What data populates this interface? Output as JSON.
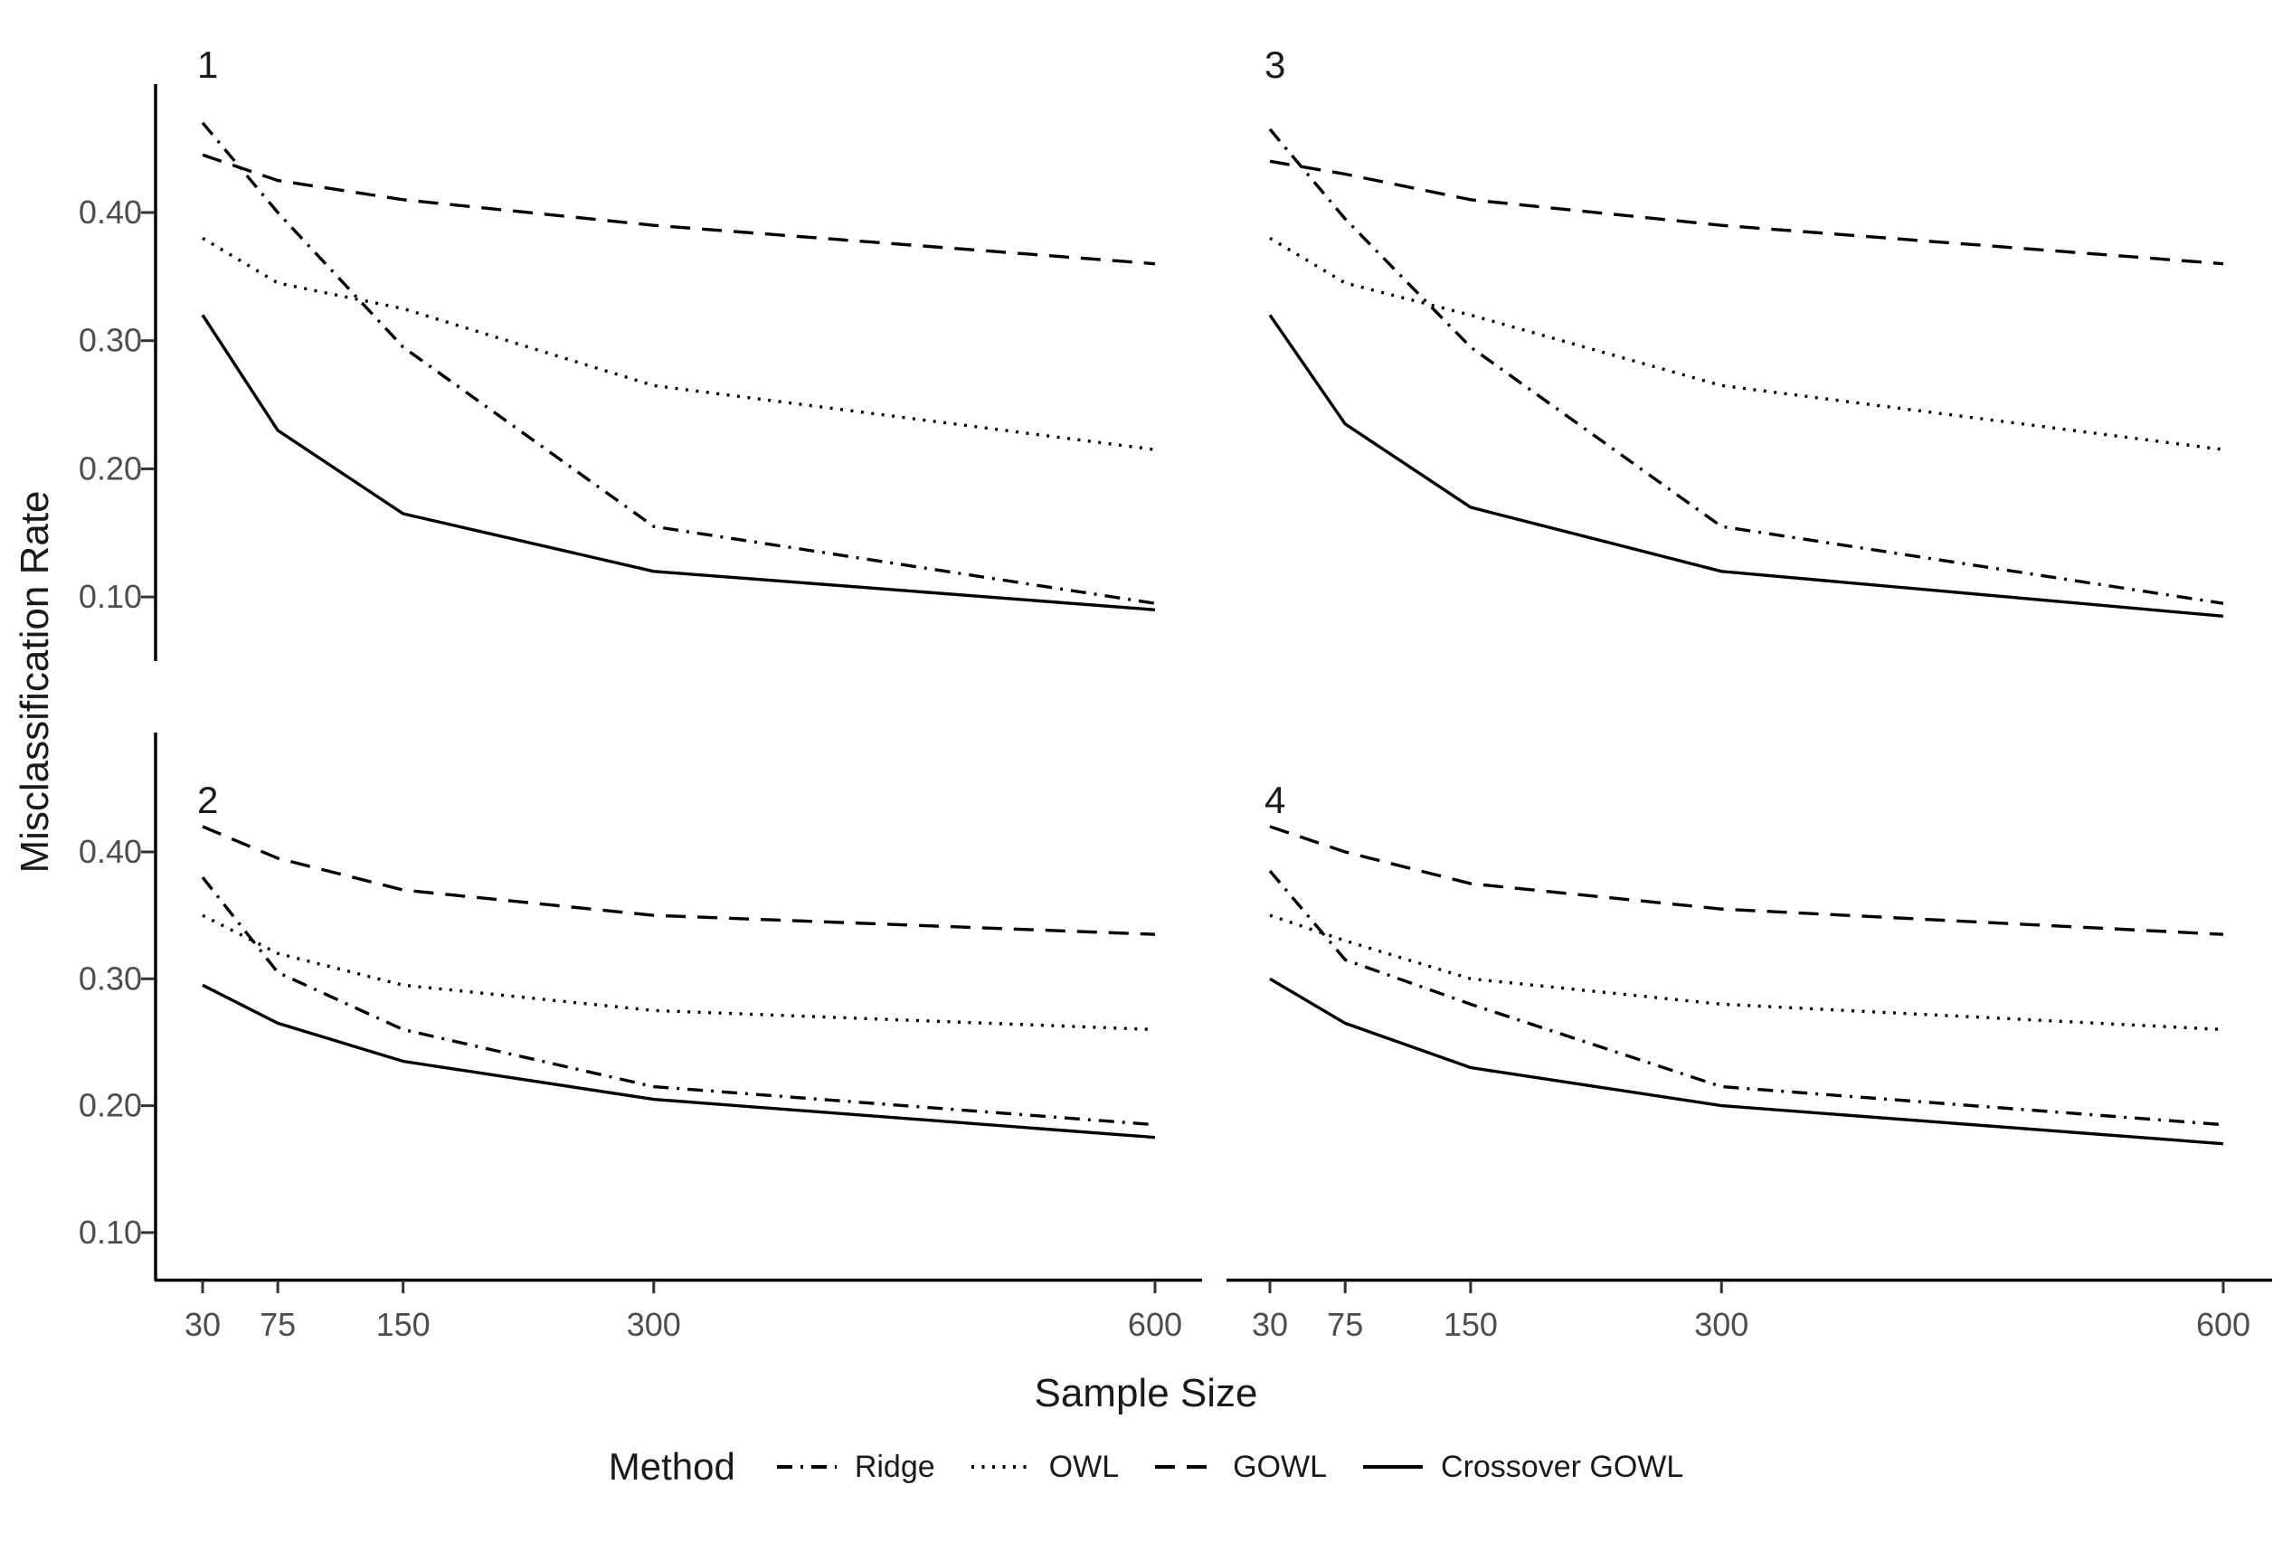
{
  "figure": {
    "y_axis_title": "Misclassification Rate",
    "x_axis_title": "Sample Size",
    "line_color": "#000000",
    "axis_color": "#000000",
    "tick_label_color": "#4d4d4d",
    "facet_label_color": "#1a1a1a",
    "y_tick_labels": [
      "0.40",
      "0.30",
      "0.20",
      "0.10"
    ],
    "y_tick_values": [
      0.4,
      0.3,
      0.2,
      0.1
    ],
    "x_tick_labels": [
      "30",
      "75",
      "150",
      "300",
      "600"
    ],
    "x_tick_values": [
      30,
      75,
      150,
      300,
      600
    ]
  },
  "legend": {
    "title": "Method",
    "items": [
      {
        "label": "Ridge",
        "linetype": "dashdot"
      },
      {
        "label": "OWL",
        "linetype": "dotted"
      },
      {
        "label": "GOWL",
        "linetype": "dashed"
      },
      {
        "label": "Crossover GOWL",
        "linetype": "solid"
      }
    ]
  },
  "chart_data": [
    {
      "type": "line",
      "facet_label": "1",
      "xlabel": "Sample Size",
      "ylabel": "Misclassification Rate",
      "x": [
        30,
        75,
        150,
        300,
        600
      ],
      "xticks": [
        30,
        75,
        150,
        300,
        600
      ],
      "yticks": [
        0.1,
        0.2,
        0.3,
        0.4
      ],
      "ylim": [
        0.05,
        0.5
      ],
      "grid": false,
      "legend_position": "bottom",
      "series": [
        {
          "name": "Ridge",
          "linetype": "dashdot",
          "values": [
            0.47,
            0.4,
            0.295,
            0.155,
            0.095
          ]
        },
        {
          "name": "OWL",
          "linetype": "dotted",
          "values": [
            0.38,
            0.345,
            0.325,
            0.265,
            0.215
          ]
        },
        {
          "name": "GOWL",
          "linetype": "dashed",
          "values": [
            0.445,
            0.425,
            0.41,
            0.39,
            0.36
          ]
        },
        {
          "name": "Crossover GOWL",
          "linetype": "solid",
          "values": [
            0.32,
            0.23,
            0.165,
            0.12,
            0.09
          ]
        }
      ]
    },
    {
      "type": "line",
      "facet_label": "2",
      "xlabel": "Sample Size",
      "ylabel": "Misclassification Rate",
      "x": [
        30,
        75,
        150,
        300,
        600
      ],
      "xticks": [
        30,
        75,
        150,
        300,
        600
      ],
      "yticks": [
        0.1,
        0.2,
        0.3,
        0.4
      ],
      "ylim": [
        0.05,
        0.5
      ],
      "grid": false,
      "legend_position": "bottom",
      "series": [
        {
          "name": "Ridge",
          "linetype": "dashdot",
          "values": [
            0.38,
            0.305,
            0.26,
            0.215,
            0.185
          ]
        },
        {
          "name": "OWL",
          "linetype": "dotted",
          "values": [
            0.35,
            0.32,
            0.295,
            0.275,
            0.26
          ]
        },
        {
          "name": "GOWL",
          "linetype": "dashed",
          "values": [
            0.42,
            0.395,
            0.37,
            0.35,
            0.335
          ]
        },
        {
          "name": "Crossover GOWL",
          "linetype": "solid",
          "values": [
            0.295,
            0.265,
            0.235,
            0.205,
            0.175
          ]
        }
      ]
    },
    {
      "type": "line",
      "facet_label": "3",
      "xlabel": "Sample Size",
      "ylabel": "Misclassification Rate",
      "x": [
        30,
        75,
        150,
        300,
        600
      ],
      "xticks": [
        30,
        75,
        150,
        300,
        600
      ],
      "yticks": [
        0.1,
        0.2,
        0.3,
        0.4
      ],
      "ylim": [
        0.05,
        0.5
      ],
      "grid": false,
      "legend_position": "bottom",
      "series": [
        {
          "name": "Ridge",
          "linetype": "dashdot",
          "values": [
            0.465,
            0.395,
            0.295,
            0.155,
            0.095
          ]
        },
        {
          "name": "OWL",
          "linetype": "dotted",
          "values": [
            0.38,
            0.345,
            0.32,
            0.265,
            0.215
          ]
        },
        {
          "name": "GOWL",
          "linetype": "dashed",
          "values": [
            0.44,
            0.43,
            0.41,
            0.39,
            0.36
          ]
        },
        {
          "name": "Crossover GOWL",
          "linetype": "solid",
          "values": [
            0.32,
            0.235,
            0.17,
            0.12,
            0.085
          ]
        }
      ]
    },
    {
      "type": "line",
      "facet_label": "4",
      "xlabel": "Sample Size",
      "ylabel": "Misclassification Rate",
      "x": [
        30,
        75,
        150,
        300,
        600
      ],
      "xticks": [
        30,
        75,
        150,
        300,
        600
      ],
      "yticks": [
        0.1,
        0.2,
        0.3,
        0.4
      ],
      "ylim": [
        0.05,
        0.5
      ],
      "grid": false,
      "legend_position": "bottom",
      "series": [
        {
          "name": "Ridge",
          "linetype": "dashdot",
          "values": [
            0.385,
            0.315,
            0.28,
            0.215,
            0.185
          ]
        },
        {
          "name": "OWL",
          "linetype": "dotted",
          "values": [
            0.35,
            0.33,
            0.3,
            0.28,
            0.26
          ]
        },
        {
          "name": "GOWL",
          "linetype": "dashed",
          "values": [
            0.42,
            0.4,
            0.375,
            0.355,
            0.335
          ]
        },
        {
          "name": "Crossover GOWL",
          "linetype": "solid",
          "values": [
            0.3,
            0.265,
            0.23,
            0.2,
            0.17
          ]
        }
      ]
    }
  ]
}
